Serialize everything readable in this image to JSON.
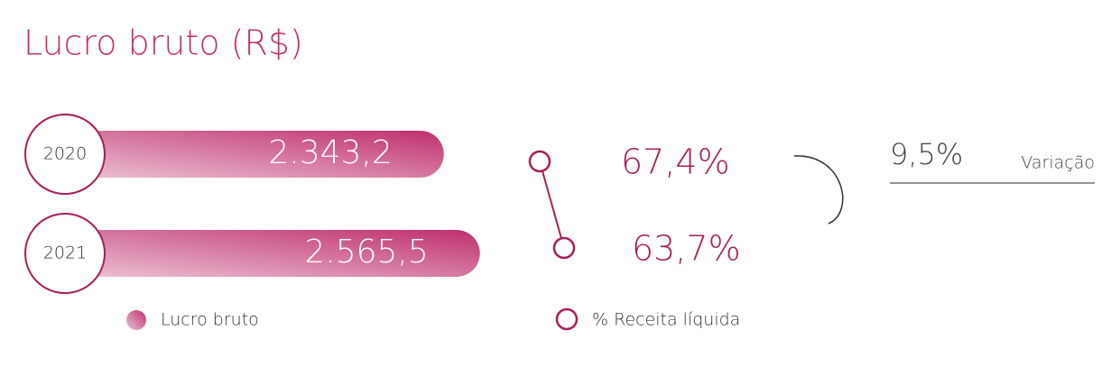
{
  "chart_data": {
    "type": "bar",
    "title": "Lucro bruto (R$)",
    "categories": [
      "2020",
      "2021"
    ],
    "series": [
      {
        "name": "Lucro bruto",
        "color": "#c0316f",
        "values": [
          2343.2,
          2565.5
        ],
        "value_labels": [
          "2.343,2",
          "2.565,5"
        ]
      },
      {
        "name": "% Receita líquida",
        "color": "#a81d5a",
        "values": [
          67.4,
          63.7
        ],
        "value_labels": [
          "67,4%",
          "63,7%"
        ]
      }
    ],
    "variation": {
      "value": 9.5,
      "value_label": "9,5%",
      "label": "Variação"
    }
  }
}
